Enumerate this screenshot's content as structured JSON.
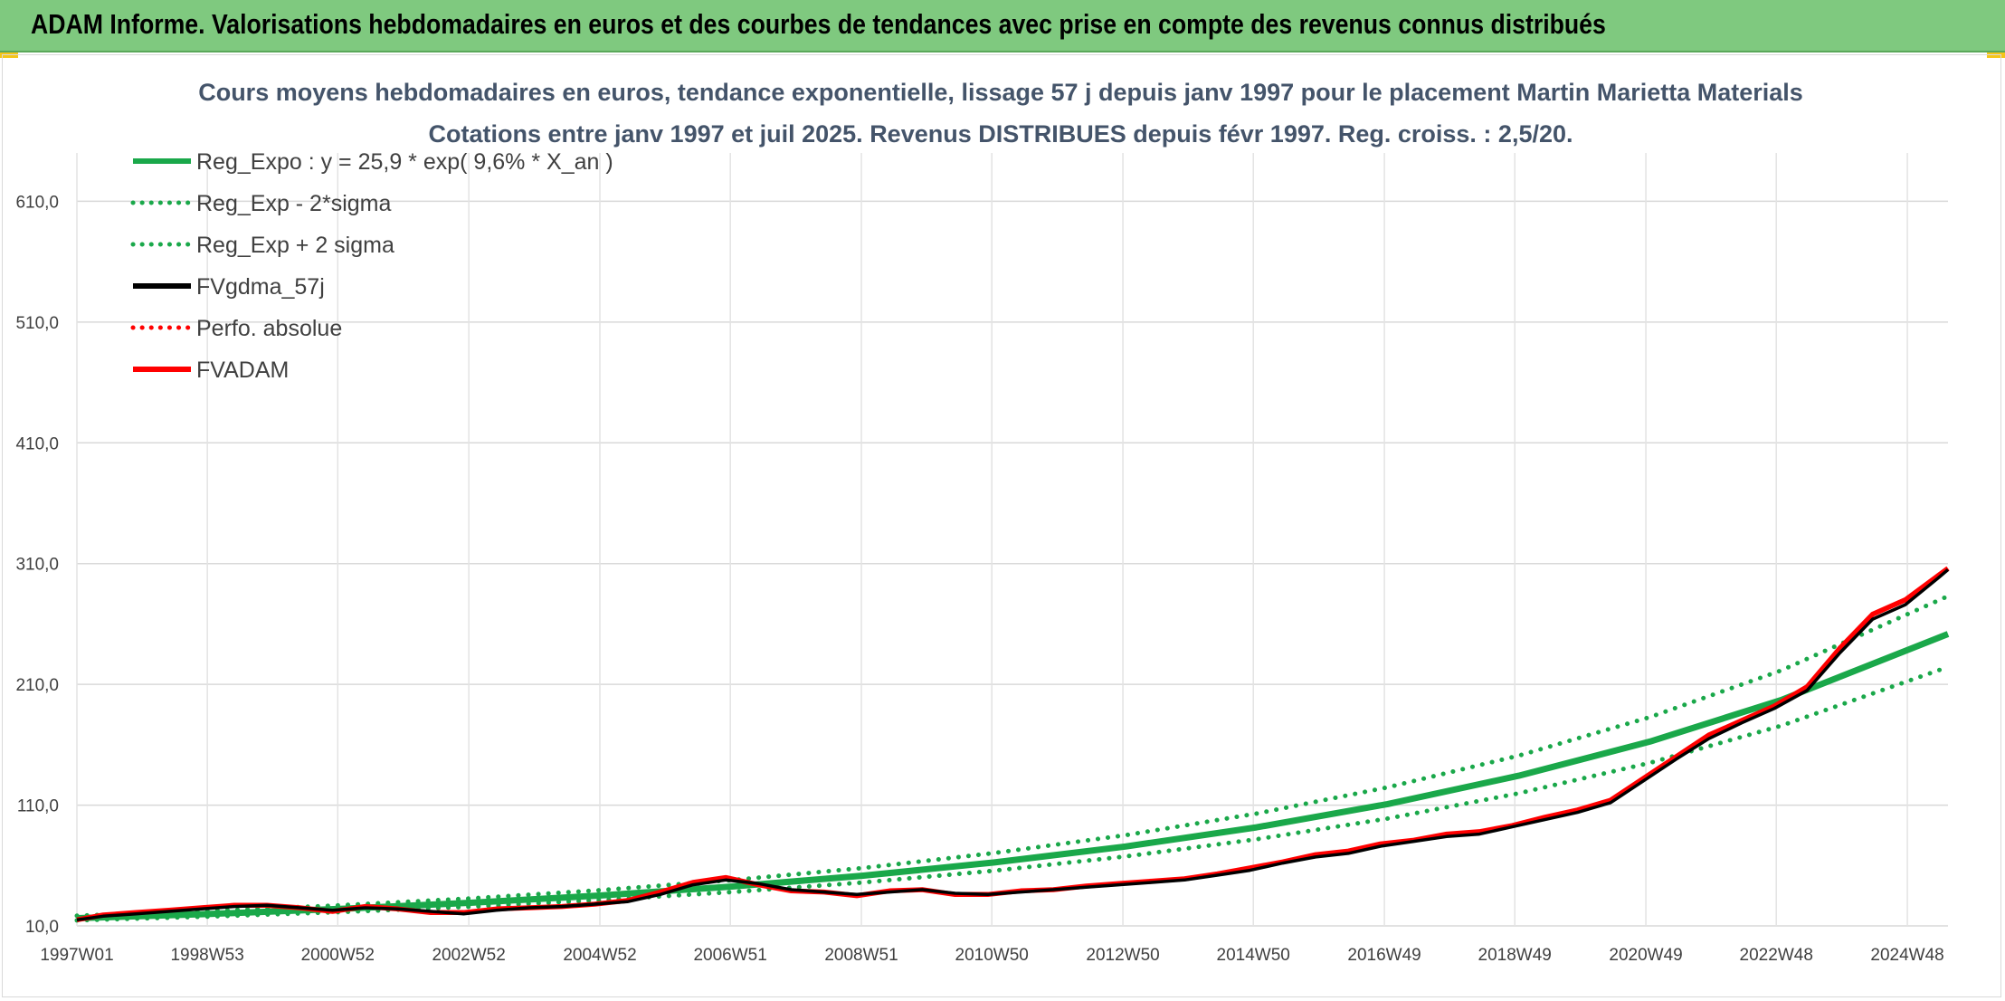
{
  "banner": {
    "title": "ADAM Informe. Valorisations hebdomadaires en euros et des courbes de tendances avec prise en compte des revenus connus distribués",
    "background": "#7fc97f"
  },
  "chart_data": {
    "type": "line",
    "title": "Cours moyens hebdomadaires en euros, tendance exponentielle, lissage 57 j depuis janv 1997 pour le placement Martin Marietta Materials",
    "subtitle": "Cotations entre janv 1997 et juil 2025. Revenus DISTRIBUES depuis févr 1997. Reg. croiss. : 2,5/20.",
    "xlabel": "",
    "ylabel": "",
    "x_range": [
      1997.0,
      2025.55
    ],
    "ylim": [
      10,
      650
    ],
    "y_ticks": [
      10,
      110,
      210,
      310,
      410,
      510,
      610
    ],
    "y_tick_labels": [
      "10,0",
      "110,0",
      "210,0",
      "310,0",
      "410,0",
      "510,0",
      "610,0"
    ],
    "x_ticks": [
      1997.0,
      1998.99,
      2000.98,
      2002.98,
      2004.98,
      2006.97,
      2008.97,
      2010.96,
      2012.96,
      2014.95,
      2016.95,
      2018.94,
      2020.94,
      2022.93,
      2024.93
    ],
    "x_tick_labels": [
      "1997W01",
      "1998W53",
      "2000W52",
      "2002W52",
      "2004W52",
      "2006W51",
      "2008W51",
      "2010W50",
      "2012W50",
      "2014W50",
      "2016W49",
      "2018W49",
      "2020W49",
      "2022W48",
      "2024W48"
    ],
    "grid": true,
    "legend_position": "top-left",
    "series": [
      {
        "name": "Reg_Expo : y = 25,9 * exp( 9,6% *  X_an )",
        "color": "#1aa84a",
        "style": "solid",
        "x": [
          1997.0,
          1999.0,
          2001.0,
          2003.0,
          2005.0,
          2007.0,
          2009.0,
          2011.0,
          2013.0,
          2015.0,
          2017.0,
          2019.0,
          2021.0,
          2023.0,
          2025.55
        ],
        "values": [
          16.4,
          19.8,
          24.0,
          29.1,
          35.2,
          42.6,
          51.6,
          62.5,
          75.7,
          91.6,
          110.9,
          134.3,
          162.6,
          196.9,
          251.7
        ]
      },
      {
        "name": "Reg_Exp - 2*sigma",
        "color": "#1aa84a",
        "style": "dotted",
        "x": [
          1997.0,
          1999.0,
          2001.0,
          2003.0,
          2005.0,
          2007.0,
          2009.0,
          2011.0,
          2013.0,
          2015.0,
          2017.0,
          2019.0,
          2021.0,
          2023.0,
          2025.55
        ],
        "values": [
          14.6,
          17.7,
          21.4,
          25.9,
          31.4,
          38.0,
          46.0,
          55.7,
          67.5,
          81.7,
          98.9,
          119.8,
          145.0,
          175.6,
          224.4
        ]
      },
      {
        "name": "Reg_Exp + 2 sigma",
        "color": "#1aa84a",
        "style": "dotted",
        "x": [
          1997.0,
          1999.0,
          2001.0,
          2003.0,
          2005.0,
          2007.0,
          2009.0,
          2011.0,
          2013.0,
          2015.0,
          2017.0,
          2019.0,
          2021.0,
          2023.0,
          2025.55
        ],
        "values": [
          18.4,
          22.3,
          27.0,
          32.7,
          39.6,
          47.9,
          58.0,
          70.3,
          85.1,
          103.0,
          124.7,
          151.0,
          182.8,
          221.4,
          283.0
        ]
      },
      {
        "name": "FVgdma_57j",
        "color": "#000000",
        "style": "solid",
        "x": [
          1997.0,
          1997.4,
          1997.9,
          1998.4,
          1998.9,
          1999.4,
          1999.9,
          2000.4,
          2000.9,
          2001.4,
          2001.9,
          2002.4,
          2002.9,
          2003.4,
          2003.9,
          2004.4,
          2004.9,
          2005.4,
          2005.9,
          2006.4,
          2006.9,
          2007.4,
          2007.9,
          2008.4,
          2008.9,
          2009.4,
          2009.9,
          2010.4,
          2010.9,
          2011.4,
          2011.9,
          2012.4,
          2012.9,
          2013.4,
          2013.9,
          2014.4,
          2014.9,
          2015.4,
          2015.9,
          2016.4,
          2016.9,
          2017.4,
          2017.9,
          2018.4,
          2018.9,
          2019.4,
          2019.9,
          2020.4,
          2020.9,
          2021.4,
          2021.9,
          2022.4,
          2022.9,
          2023.4,
          2023.9,
          2024.4,
          2024.9,
          2025.4,
          2025.55
        ],
        "values": [
          15,
          18,
          20,
          22,
          24,
          26,
          27,
          25,
          23,
          25,
          24,
          22,
          20,
          23,
          25,
          26,
          28,
          30,
          36,
          44,
          48,
          45,
          40,
          38,
          36,
          38,
          40,
          37,
          36,
          38,
          40,
          42,
          44,
          46,
          48,
          52,
          56,
          62,
          67,
          70,
          76,
          80,
          84,
          86,
          92,
          98,
          104,
          112,
          130,
          148,
          165,
          178,
          190,
          205,
          236,
          264,
          276,
          298,
          305
        ]
      },
      {
        "name": "Perfo. absolue",
        "color": "#ff0000",
        "style": "dotted",
        "x": [],
        "values": []
      },
      {
        "name": "FVADAM",
        "color": "#ff0000",
        "style": "solid",
        "x": [
          1997.0,
          1997.4,
          1997.9,
          1998.4,
          1998.9,
          1999.4,
          1999.9,
          2000.4,
          2000.9,
          2001.4,
          2001.9,
          2002.4,
          2002.9,
          2003.4,
          2003.9,
          2004.4,
          2004.9,
          2005.4,
          2005.9,
          2006.4,
          2006.9,
          2007.4,
          2007.9,
          2008.4,
          2008.9,
          2009.4,
          2009.9,
          2010.4,
          2010.9,
          2011.4,
          2011.9,
          2012.4,
          2012.9,
          2013.4,
          2013.9,
          2014.4,
          2014.9,
          2015.4,
          2015.9,
          2016.4,
          2016.9,
          2017.4,
          2017.9,
          2018.4,
          2018.9,
          2019.4,
          2019.9,
          2020.4,
          2020.9,
          2021.4,
          2021.9,
          2022.4,
          2022.9,
          2023.4,
          2023.9,
          2024.4,
          2024.9,
          2025.4,
          2025.55
        ],
        "values": [
          15,
          19,
          21,
          23,
          25,
          27,
          27,
          25,
          22,
          26,
          24,
          21,
          21,
          24,
          25,
          26,
          28,
          31,
          38,
          46,
          50,
          44,
          39,
          38,
          35,
          39,
          40,
          36,
          36,
          39,
          40,
          43,
          45,
          47,
          49,
          53,
          58,
          63,
          69,
          72,
          78,
          81,
          86,
          88,
          93,
          100,
          106,
          114,
          132,
          150,
          168,
          180,
          192,
          208,
          240,
          268,
          280,
          300,
          306
        ]
      }
    ]
  }
}
